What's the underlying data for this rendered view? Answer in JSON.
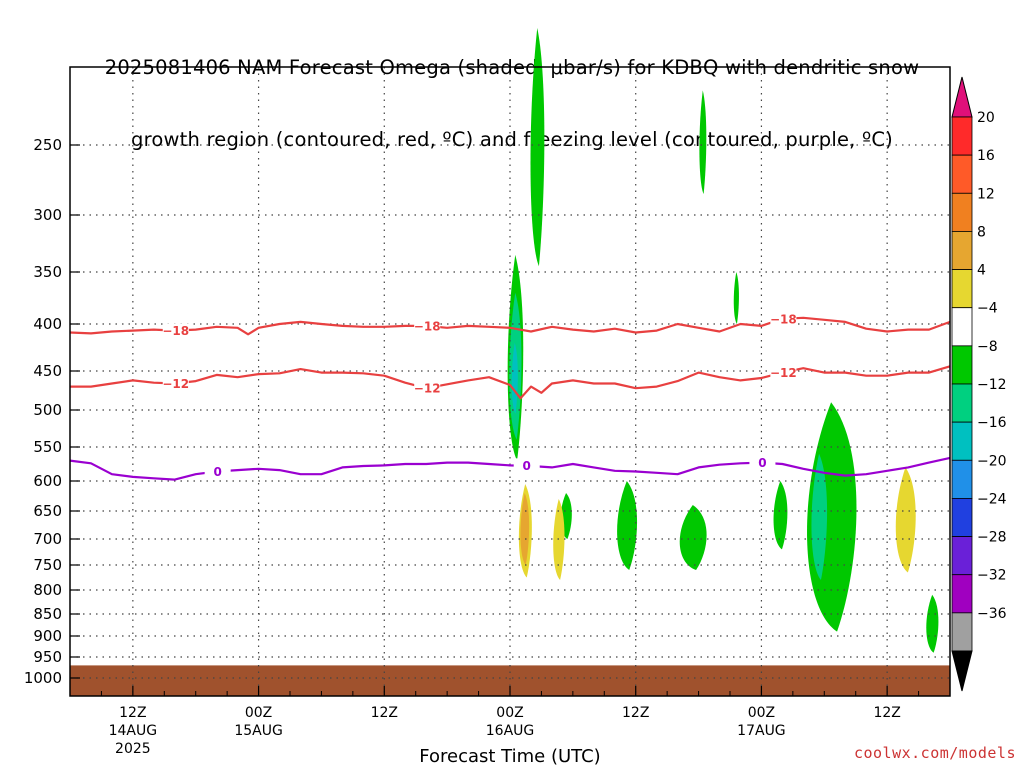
{
  "title_line1": "2025081406 NAM Forecast Omega (shaded, μbar/s) for KDBQ with dendritic snow",
  "title_line2": "growth region (contoured, red, ºC) and freezing level (contoured, purple, ºC)",
  "credit": "coolwx.com/models",
  "chart_data": {
    "type": "heatmap",
    "title": "2025081406 NAM Forecast Omega (shaded, μbar/s) for KDBQ with dendritic snow growth region (contoured, red, ºC) and freezing level (contoured, purple, ºC)",
    "xlabel": "Forecast Time (UTC)",
    "ylabel": "",
    "x_hours_range": [
      6,
      90
    ],
    "x_ticks": [
      {
        "hour": 12,
        "label": "12Z",
        "sub1": "14AUG",
        "sub2": "2025"
      },
      {
        "hour": 24,
        "label": "00Z",
        "sub1": "15AUG",
        "sub2": ""
      },
      {
        "hour": 36,
        "label": "12Z",
        "sub1": "",
        "sub2": ""
      },
      {
        "hour": 48,
        "label": "00Z",
        "sub1": "16AUG",
        "sub2": ""
      },
      {
        "hour": 60,
        "label": "12Z",
        "sub1": "",
        "sub2": ""
      },
      {
        "hour": 72,
        "label": "00Z",
        "sub1": "17AUG",
        "sub2": ""
      },
      {
        "hour": 84,
        "label": "12Z",
        "sub1": "",
        "sub2": ""
      }
    ],
    "y_ticks": [
      250,
      300,
      350,
      400,
      450,
      500,
      550,
      600,
      650,
      700,
      750,
      800,
      850,
      900,
      950,
      1000
    ],
    "y_range": [
      200,
      1000
    ],
    "surface_pressure": 970,
    "colorbar": {
      "levels": [
        "20",
        "16",
        "12",
        "8",
        "4",
        "−4",
        "−8",
        "−12",
        "−16",
        "−20",
        "−24",
        "−28",
        "−32",
        "−36"
      ],
      "colors": [
        "#ff2a2a",
        "#ff5a28",
        "#f08020",
        "#e6a630",
        "#e6d730",
        "#ffffff",
        "#00c800",
        "#00d080",
        "#00c0c0",
        "#2090e8",
        "#2040e0",
        "#6a20d8",
        "#a000c0",
        "#a0a0a0"
      ],
      "top_color": "#e0107a",
      "bottom_color": "#000000"
    },
    "contours": [
      {
        "label": "−18",
        "color": "#e84040",
        "x": [
          6,
          8,
          10,
          12,
          14,
          16,
          18,
          20,
          22,
          23,
          24,
          26,
          28,
          30,
          32,
          34,
          36,
          38,
          40,
          42,
          44,
          46,
          48,
          50,
          52,
          54,
          56,
          58,
          60,
          62,
          64,
          66,
          68,
          70,
          72,
          74,
          76,
          78,
          80,
          82,
          84,
          86,
          88,
          90
        ],
        "y": [
          409,
          410,
          408,
          407,
          406,
          407,
          406,
          403,
          404,
          411,
          404,
          400,
          398,
          400,
          402,
          403,
          403,
          402,
          402,
          404,
          402,
          403,
          404,
          408,
          403,
          406,
          408,
          405,
          409,
          407,
          400,
          404,
          408,
          400,
          402,
          395,
          394,
          396,
          398,
          405,
          408,
          406,
          406,
          398
        ]
      },
      {
        "label": "−12",
        "color": "#e84040",
        "x": [
          6,
          8,
          10,
          12,
          14,
          16,
          18,
          20,
          22,
          24,
          26,
          28,
          30,
          32,
          34,
          36,
          38,
          40,
          42,
          44,
          46,
          48,
          49,
          50,
          51,
          52,
          54,
          56,
          58,
          60,
          62,
          64,
          66,
          68,
          70,
          72,
          74,
          76,
          78,
          80,
          82,
          84,
          86,
          88,
          90
        ],
        "y": [
          470,
          470,
          466,
          462,
          465,
          466,
          463,
          455,
          458,
          454,
          453,
          448,
          452,
          452,
          453,
          456,
          465,
          472,
          467,
          462,
          458,
          468,
          485,
          470,
          478,
          466,
          462,
          466,
          466,
          472,
          470,
          463,
          452,
          458,
          462,
          459,
          452,
          447,
          452,
          452,
          456,
          456,
          452,
          452,
          445
        ]
      },
      {
        "label": "0",
        "color": "#9a00d0",
        "x": [
          6,
          8,
          10,
          12,
          14,
          16,
          18,
          20,
          22,
          24,
          26,
          28,
          30,
          32,
          34,
          36,
          38,
          40,
          42,
          44,
          46,
          48,
          50,
          52,
          54,
          56,
          58,
          60,
          62,
          64,
          66,
          68,
          70,
          72,
          74,
          76,
          78,
          80,
          82,
          84,
          86,
          88,
          90
        ],
        "y": [
          570,
          574,
          590,
          594,
          596,
          598,
          590,
          586,
          584,
          582,
          584,
          590,
          590,
          580,
          578,
          577,
          575,
          575,
          573,
          573,
          575,
          577,
          578,
          580,
          575,
          580,
          585,
          586,
          588,
          590,
          580,
          576,
          574,
          573,
          575,
          582,
          588,
          592,
          590,
          585,
          580,
          573,
          566
        ]
      }
    ],
    "omega_regions": [
      {
        "class": "-4..-8",
        "color": "#00c800",
        "x_hours": [
          47.6,
          49.4
        ],
        "p_top": 335,
        "p_bot": 570
      },
      {
        "class": "-8..-12",
        "color": "#00d080",
        "x_hours": [
          47.8,
          49.2
        ],
        "p_top": 370,
        "p_bot": 540
      },
      {
        "class": "-12..-16",
        "color": "#00c0c0",
        "x_hours": [
          48.1,
          48.8
        ],
        "p_top": 420,
        "p_bot": 505
      },
      {
        "class": "-4..-8",
        "color": "#00c800",
        "x_hours": [
          49.8,
          51.4
        ],
        "p_top": 175,
        "p_bot": 345
      },
      {
        "class": "-4..-8",
        "color": "#00c800",
        "x_hours": [
          52.7,
          54.0
        ],
        "p_top": 620,
        "p_bot": 700
      },
      {
        "class": "-4..-8",
        "color": "#00c800",
        "x_hours": [
          58.0,
          60.3
        ],
        "p_top": 600,
        "p_bot": 760
      },
      {
        "class": "-4..-8",
        "color": "#00c800",
        "x_hours": [
          63.9,
          67.0
        ],
        "p_top": 640,
        "p_bot": 760
      },
      {
        "class": "-4..-8",
        "color": "#00c800",
        "x_hours": [
          66.0,
          66.8
        ],
        "p_top": 215,
        "p_bot": 285
      },
      {
        "class": "-4..-8",
        "color": "#00c800",
        "x_hours": [
          69.3,
          69.9
        ],
        "p_top": 350,
        "p_bot": 400
      },
      {
        "class": "-4..-8",
        "color": "#00c800",
        "x_hours": [
          73.0,
          74.6
        ],
        "p_top": 600,
        "p_bot": 720
      },
      {
        "class": "-4..-8",
        "color": "#00c800",
        "x_hours": [
          75.8,
          81.5
        ],
        "p_top": 490,
        "p_bot": 890
      },
      {
        "class": "-8..-12",
        "color": "#00d080",
        "x_hours": [
          76.6,
          78.4
        ],
        "p_top": 560,
        "p_bot": 780
      },
      {
        "class": "-4..-8",
        "color": "#00c800",
        "x_hours": [
          87.6,
          89.0
        ],
        "p_top": 810,
        "p_bot": 940
      },
      {
        "class": "4..8",
        "color": "#e6d730",
        "x_hours": [
          52.0,
          53.3
        ],
        "p_top": 630,
        "p_bot": 780
      },
      {
        "class": "4..8",
        "color": "#e6d730",
        "x_hours": [
          84.6,
          86.9
        ],
        "p_top": 580,
        "p_bot": 765
      },
      {
        "class": "4..8",
        "color": "#e6d730",
        "x_hours": [
          48.7,
          50.2
        ],
        "p_top": 605,
        "p_bot": 775
      },
      {
        "class": "8..12",
        "color": "#e6a630",
        "x_hours": [
          48.9,
          49.9
        ],
        "p_top": 620,
        "p_bot": 750
      }
    ]
  }
}
